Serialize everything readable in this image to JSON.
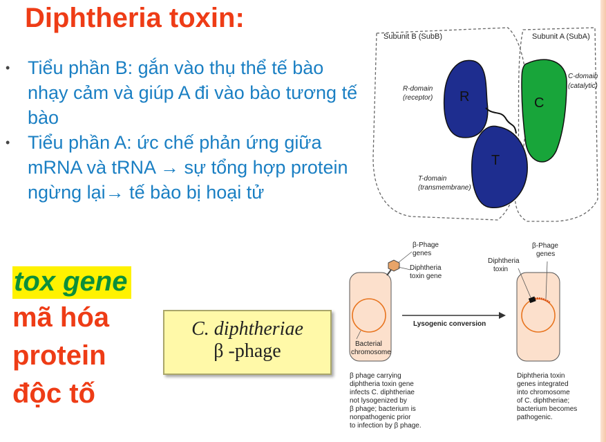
{
  "title": "Diphtheria toxin:",
  "bullets": [
    "Tiểu phần B: gắn vào thụ thể tế bào nhạy cảm và giúp A đi vào bào tương tế bào",
    "Tiểu phần A: ức chế phản ứng giữa mRNA và tRNA → sự tổng hợp protein ngừng lại→ tế bào bị hoại tử"
  ],
  "bullet_marker": "•",
  "gene_note": {
    "highlight": "tox gene",
    "lines": [
      "mã hóa",
      "protein",
      "độc tố"
    ]
  },
  "species_box": {
    "line1": "C. diphtheriae",
    "line2": "β -phage"
  },
  "toxin_diagram": {
    "subunit_b_label": "Subunit B (SubB)",
    "subunit_a_label": "Subunit A (SubA)",
    "r_letter": "R",
    "t_letter": "T",
    "c_letter": "C",
    "r_domain": "R-domain",
    "r_domain_sub": "(receptor)",
    "t_domain": "T-domain",
    "t_domain_sub": "(transmembrane)",
    "c_domain": "C-domain",
    "c_domain_sub": "(catalytic)"
  },
  "phage_diagram": {
    "phage_genes_left": [
      "β-Phage",
      "genes"
    ],
    "toxin_gene_left": [
      "Diphtheria",
      "toxin gene"
    ],
    "conversion": "Lysogenic conversion",
    "bacterial_chromosome": [
      "Bacterial",
      "chromosome"
    ],
    "toxin_right": [
      "Diphtheria",
      "toxin"
    ],
    "phage_genes_right": [
      "β-Phage",
      "genes"
    ],
    "caption_left": [
      "β phage carrying",
      "diphtheria toxin gene",
      "infects C. diphtheriae",
      "not lysogenized by",
      "β phage; bacterium is",
      "nonpathogenic prior",
      "to infection by β phage."
    ],
    "caption_right": [
      "Diphtheria toxin",
      "genes integrated",
      "into chromosome",
      "of C. diphtheriae;",
      "bacterium becomes",
      "pathogenic."
    ]
  },
  "colors": {
    "title": "#ee3c16",
    "bullets": "#1a7fc3",
    "gene": "#0b8f3a",
    "highlight": "#fff200",
    "domain_blue": "#1e2d8f",
    "domain_green": "#18a53a"
  }
}
